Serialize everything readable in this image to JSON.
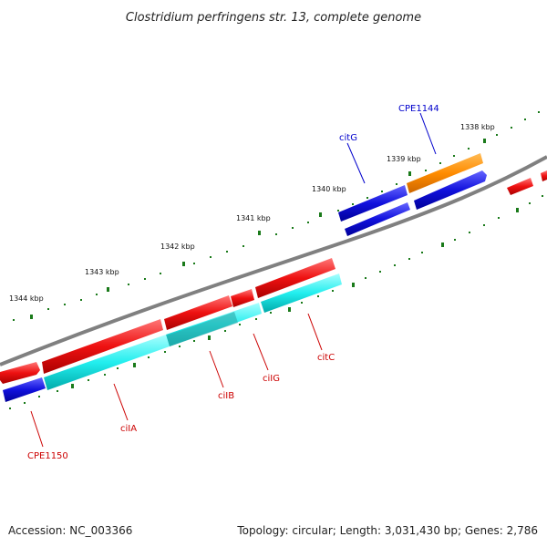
{
  "title": "Clostridium perfringens str. 13, complete genome",
  "footer": {
    "accession": "Accession: NC_003366",
    "stats": "Topology: circular; Length: 3,031,430 bp; Genes: 2,786"
  },
  "ruler": [
    {
      "label": "1338 kbp"
    },
    {
      "label": "1339 kbp"
    },
    {
      "label": "1340 kbp"
    },
    {
      "label": "1341 kbp"
    },
    {
      "label": "1342 kbp"
    },
    {
      "label": "1343 kbp"
    },
    {
      "label": "1344 kbp"
    }
  ],
  "gene_labels": [
    {
      "label": "CPE1144",
      "color": "#0000cc"
    },
    {
      "label": "citG",
      "color": "#0000cc"
    },
    {
      "label": "citC",
      "color": "#cc0000"
    },
    {
      "label": "ciIG",
      "color": "#cc0000"
    },
    {
      "label": "ciIB",
      "color": "#cc0000"
    },
    {
      "label": "ciIA",
      "color": "#cc0000"
    },
    {
      "label": "CPE1150",
      "color": "#cc0000"
    }
  ],
  "colors": {
    "backbone": "#808080",
    "tick": "#1a7a1a",
    "red": "#ee1111",
    "blue": "#1111dd",
    "orange": "#ff8c00",
    "cyan": "#22eeee"
  }
}
